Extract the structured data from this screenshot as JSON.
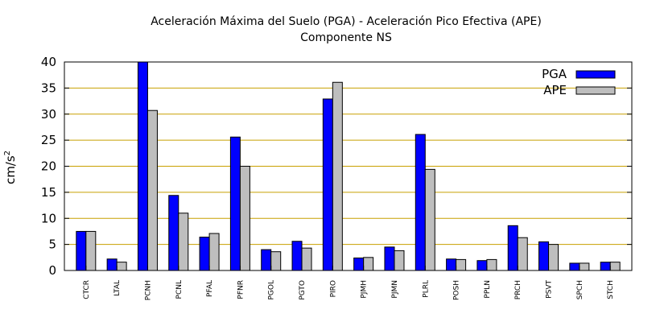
{
  "chart_data": {
    "type": "bar",
    "title": "Aceleración Máxima del Suelo (PGA) -  Aceleración Pico Efectiva (APE)",
    "subtitle": "Componente NS",
    "xlabel": "",
    "ylabel": "cm/s",
    "ylabel_superscript": "2",
    "ylim": [
      0,
      40
    ],
    "yticks": [
      0,
      5,
      10,
      15,
      20,
      25,
      30,
      35,
      40
    ],
    "grid": "horizontal",
    "legend_position": "top-right",
    "categories": [
      "CTCR",
      "LTAL",
      "PCNH",
      "PCNL",
      "PFAL",
      "PFNR",
      "PGOL",
      "PGTO",
      "PIRO",
      "PJMH",
      "PJMN",
      "PLRL",
      "POSH",
      "PPLN",
      "PRCH",
      "PSVT",
      "SPCH",
      "STCH"
    ],
    "series": [
      {
        "name": "PGA",
        "color": "#0000ff",
        "values": [
          7.5,
          2.2,
          40,
          14.4,
          6.4,
          25.6,
          4.0,
          5.6,
          32.9,
          2.4,
          4.5,
          26.1,
          2.2,
          1.9,
          8.6,
          5.5,
          1.4,
          1.6
        ]
      },
      {
        "name": "APE",
        "color": "#bebebe",
        "values": [
          7.5,
          1.6,
          30.7,
          11.0,
          7.1,
          20.0,
          3.6,
          4.3,
          36.1,
          2.5,
          3.8,
          19.4,
          2.1,
          2.1,
          6.3,
          5.0,
          1.4,
          1.6
        ]
      }
    ],
    "colors": {
      "grid": "#c8a000",
      "frame": "#000000"
    }
  }
}
